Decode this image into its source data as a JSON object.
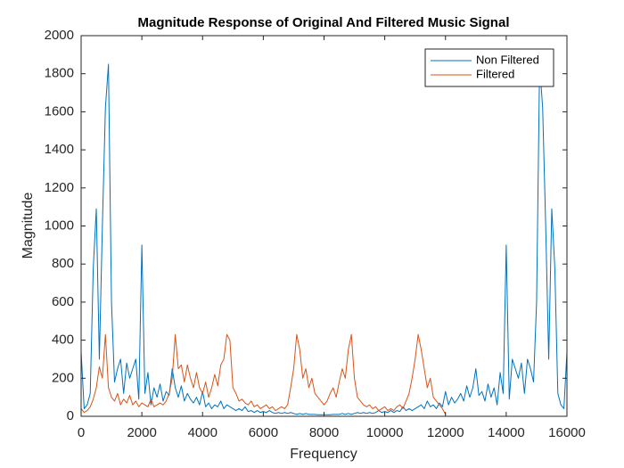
{
  "chart_data": {
    "type": "line",
    "title": "Magnitude Response of Original And Filtered Music Signal",
    "x_label": "Frequency",
    "y_label": "Magnitude",
    "xlim": [
      0,
      16000
    ],
    "xticks": [
      0,
      2000,
      4000,
      6000,
      8000,
      10000,
      12000,
      14000,
      16000
    ],
    "ylim": [
      0,
      2000
    ],
    "yticks": [
      0,
      200,
      400,
      600,
      800,
      1000,
      1200,
      1400,
      1600,
      1800,
      2000
    ],
    "legend": "upper right",
    "series": [
      {
        "name": "Non Filtered",
        "color": "#0072bd",
        "x": [
          0,
          100,
          200,
          300,
          400,
          500,
          600,
          700,
          800,
          900,
          1000,
          1100,
          1200,
          1300,
          1400,
          1500,
          1600,
          1700,
          1800,
          1900,
          2000,
          2100,
          2200,
          2300,
          2400,
          2500,
          2600,
          2700,
          2800,
          2900,
          3000,
          3100,
          3200,
          3300,
          3400,
          3500,
          3600,
          3700,
          3800,
          3900,
          4000,
          4100,
          4200,
          4300,
          4400,
          4500,
          4600,
          4700,
          4800,
          4900,
          5000,
          5100,
          5200,
          5300,
          5400,
          5500,
          5600,
          5700,
          5800,
          5900,
          6000,
          6100,
          6200,
          6300,
          6400,
          6500,
          6600,
          6700,
          6800,
          6900,
          7000,
          7100,
          7200,
          7300,
          7400,
          7500,
          7600,
          7700,
          7800,
          7900,
          8000,
          8100,
          8200,
          8300,
          8400,
          8500,
          8600,
          8700,
          8800,
          8900,
          9000,
          9100,
          9200,
          9300,
          9400,
          9500,
          9600,
          9700,
          9800,
          9900,
          10000,
          10100,
          10200,
          10300,
          10400,
          10500,
          10600,
          10700,
          10800,
          10900,
          11000,
          11100,
          11200,
          11300,
          11400,
          11500,
          11600,
          11700,
          11800,
          11900,
          12000,
          12100,
          12200,
          12300,
          12400,
          12500,
          12600,
          12700,
          12800,
          12900,
          13000,
          13100,
          13200,
          13300,
          13400,
          13500,
          13600,
          13700,
          13800,
          13900,
          14000,
          14100,
          14200,
          14300,
          14400,
          14500,
          14600,
          14700,
          14800,
          14900,
          15000,
          15100,
          15200,
          15300,
          15400,
          15500,
          15600,
          15700,
          15800,
          15900,
          16000
        ],
        "values": [
          340,
          40,
          60,
          120,
          780,
          1090,
          300,
          1000,
          1620,
          1850,
          600,
          180,
          250,
          300,
          120,
          280,
          200,
          250,
          300,
          90,
          900,
          120,
          230,
          60,
          150,
          100,
          170,
          80,
          130,
          110,
          250,
          150,
          100,
          160,
          80,
          120,
          90,
          70,
          100,
          60,
          130,
          50,
          70,
          40,
          60,
          50,
          80,
          40,
          60,
          50,
          40,
          30,
          40,
          30,
          50,
          25,
          30,
          20,
          30,
          20,
          25,
          20,
          30,
          20,
          15,
          20,
          15,
          20,
          15,
          20,
          15,
          10,
          15,
          10,
          15,
          10,
          10,
          10,
          8,
          8,
          8,
          8,
          8,
          10,
          10,
          10,
          15,
          10,
          15,
          10,
          15,
          20,
          15,
          20,
          15,
          20,
          15,
          20,
          30,
          20,
          25,
          20,
          30,
          20,
          30,
          25,
          50,
          30,
          40,
          30,
          40,
          50,
          60,
          40,
          80,
          50,
          60,
          40,
          70,
          50,
          130,
          60,
          100,
          70,
          90,
          120,
          80,
          160,
          100,
          150,
          250,
          110,
          130,
          80,
          170,
          100,
          150,
          60,
          230,
          120,
          900,
          90,
          300,
          250,
          200,
          280,
          120,
          300,
          250,
          180,
          600,
          1850,
          1620,
          1000,
          300,
          1090,
          780,
          120,
          60,
          40,
          340
        ]
      },
      {
        "name": "Filtered",
        "color": "#d95319",
        "x": [
          0,
          100,
          200,
          300,
          400,
          500,
          600,
          700,
          800,
          900,
          1000,
          1100,
          1200,
          1300,
          1400,
          1500,
          1600,
          1700,
          1800,
          1900,
          2000,
          2100,
          2200,
          2300,
          2400,
          2500,
          2600,
          2700,
          2800,
          2900,
          3000,
          3100,
          3200,
          3300,
          3400,
          3500,
          3600,
          3700,
          3800,
          3900,
          4000,
          4100,
          4200,
          4300,
          4400,
          4500,
          4600,
          4700,
          4800,
          4900,
          5000,
          5100,
          5200,
          5300,
          5400,
          5500,
          5600,
          5700,
          5800,
          5900,
          6000,
          6100,
          6200,
          6300,
          6400,
          6500,
          6600,
          6700,
          6800,
          6900,
          7000,
          7100,
          7200,
          7300,
          7400,
          7500,
          7600,
          7700,
          7800,
          7900,
          8000,
          8100,
          8200,
          8300,
          8400,
          8500,
          8600,
          8700,
          8800,
          8900,
          9000,
          9100,
          9200,
          9300,
          9400,
          9500,
          9600,
          9700,
          9800,
          9900,
          10000,
          10100,
          10200,
          10300,
          10400,
          10500,
          10600,
          10700,
          10800,
          10900,
          11000,
          11100,
          11200,
          11300,
          11400,
          11500,
          11600,
          11700,
          11800,
          11900,
          12000
        ],
        "values": [
          40,
          20,
          30,
          50,
          90,
          150,
          260,
          200,
          430,
          150,
          100,
          80,
          120,
          60,
          90,
          70,
          110,
          60,
          80,
          50,
          70,
          60,
          50,
          90,
          50,
          60,
          70,
          60,
          80,
          120,
          200,
          430,
          250,
          270,
          180,
          270,
          200,
          150,
          230,
          150,
          120,
          180,
          100,
          150,
          220,
          160,
          270,
          300,
          430,
          400,
          150,
          120,
          80,
          90,
          70,
          60,
          80,
          50,
          60,
          40,
          50,
          60,
          40,
          50,
          30,
          40,
          50,
          40,
          60,
          150,
          250,
          430,
          350,
          200,
          250,
          150,
          200,
          120,
          100,
          80,
          60,
          80,
          120,
          150,
          100,
          180,
          250,
          200,
          350,
          430,
          200,
          100,
          80,
          60,
          50,
          60,
          40,
          50,
          30,
          40,
          50,
          30,
          40,
          30,
          50,
          60,
          40,
          80,
          120,
          200,
          300,
          430,
          350,
          250,
          150,
          200,
          100,
          80,
          60,
          40,
          10
        ]
      }
    ]
  }
}
